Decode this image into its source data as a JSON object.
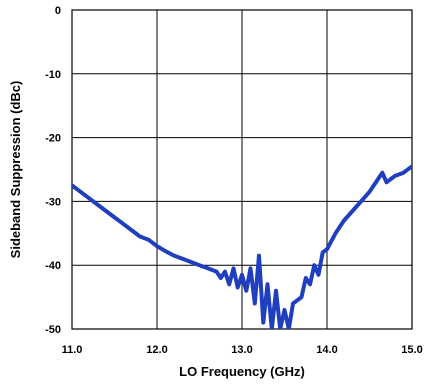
{
  "chart_data": {
    "type": "line",
    "title": "",
    "xlabel": "LO Frequency (GHz)",
    "ylabel": "Sideband Suppression (dBc)",
    "xlim": [
      11.0,
      15.0
    ],
    "ylim": [
      -50,
      0
    ],
    "x_ticks": [
      "11.0",
      "12.0",
      "13.0",
      "14.0",
      "15.0"
    ],
    "y_ticks": [
      "0",
      "-10",
      "-20",
      "-30",
      "-40",
      "-50"
    ],
    "grid": true,
    "series": [
      {
        "color": "#1f3fbf",
        "x": [
          11.0,
          11.1,
          11.2,
          11.3,
          11.4,
          11.5,
          11.6,
          11.7,
          11.8,
          11.9,
          12.0,
          12.1,
          12.2,
          12.3,
          12.4,
          12.5,
          12.6,
          12.7,
          12.75,
          12.8,
          12.85,
          12.9,
          12.95,
          13.0,
          13.05,
          13.1,
          13.15,
          13.2,
          13.25,
          13.3,
          13.35,
          13.4,
          13.45,
          13.5,
          13.55,
          13.6,
          13.65,
          13.7,
          13.75,
          13.8,
          13.85,
          13.9,
          13.95,
          14.0,
          14.1,
          14.2,
          14.3,
          14.4,
          14.5,
          14.6,
          14.65,
          14.7,
          14.8,
          14.9,
          15.0
        ],
        "y": [
          -27.5,
          -28.5,
          -29.5,
          -30.5,
          -31.5,
          -32.5,
          -33.5,
          -34.5,
          -35.5,
          -36.0,
          -37.0,
          -37.8,
          -38.5,
          -39.0,
          -39.5,
          -40.0,
          -40.5,
          -41.0,
          -42.0,
          -41.0,
          -43.0,
          -40.5,
          -43.5,
          -41.5,
          -44.0,
          -40.5,
          -46.0,
          -38.5,
          -49.0,
          -43.0,
          -50.0,
          -44.0,
          -50.0,
          -47.0,
          -50.0,
          -46.0,
          -45.5,
          -45.0,
          -42.0,
          -43.0,
          -40.0,
          -41.5,
          -38.0,
          -37.5,
          -35.0,
          -33.0,
          -31.5,
          -30.0,
          -28.5,
          -26.5,
          -25.5,
          -27.0,
          -26.0,
          -25.5,
          -24.5
        ]
      }
    ]
  }
}
